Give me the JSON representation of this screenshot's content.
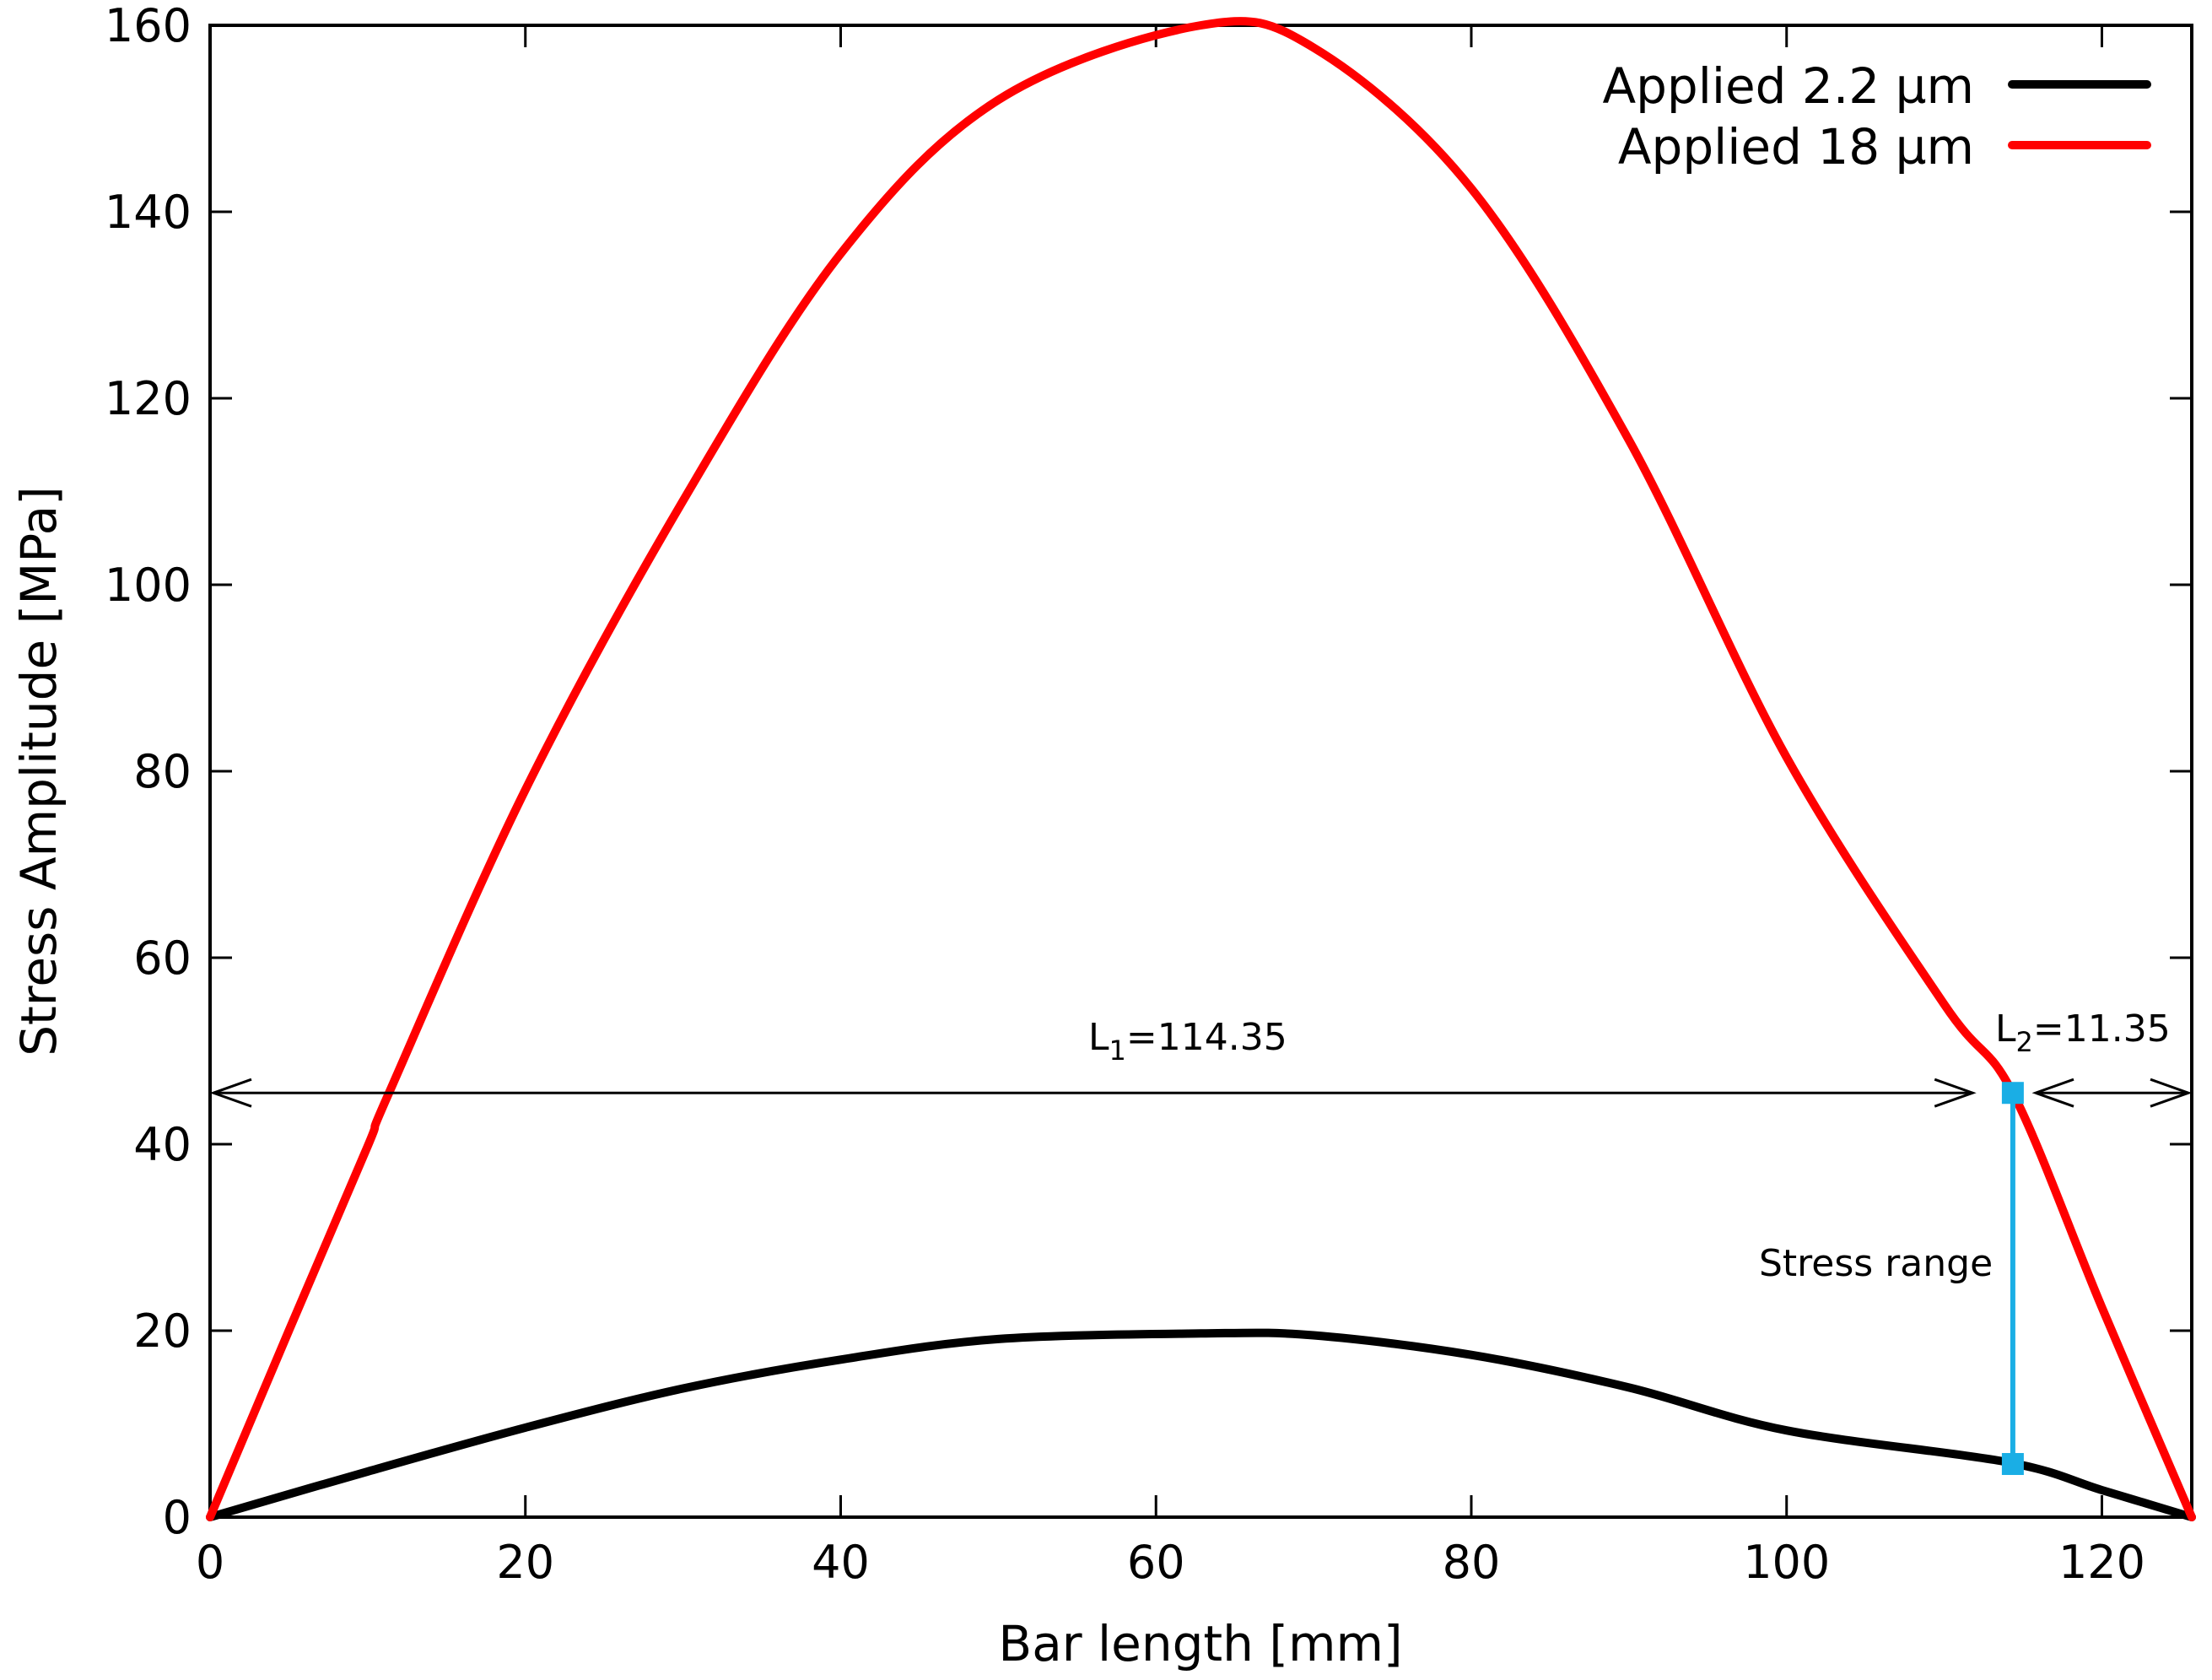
{
  "chart_data": {
    "type": "line",
    "title": "",
    "xlabel": "Bar length [mm]",
    "ylabel": "Stress Amplitude [MPa]",
    "xlim": [
      0,
      125.7
    ],
    "ylim": [
      0,
      160
    ],
    "xticks": [
      0,
      20,
      40,
      60,
      80,
      100,
      120
    ],
    "yticks": [
      0,
      20,
      40,
      60,
      80,
      100,
      120,
      140,
      160
    ],
    "grid": false,
    "legend_position": "top-right",
    "series": [
      {
        "name": "Applied 2.2 µm",
        "color": "#000000",
        "x": [
          0,
          10,
          20,
          30,
          40,
          50,
          62.85,
          70,
          80,
          90,
          100,
          114,
          120,
          125.7
        ],
        "y": [
          0,
          4.9,
          9.6,
          13.8,
          16.9,
          19.1,
          19.7,
          19.5,
          17.4,
          13.9,
          9.3,
          5.9,
          2.9,
          0
        ]
      },
      {
        "name": "Applied 18 µm",
        "color": "#ff0000",
        "x": [
          0,
          5,
          10,
          11.35,
          20,
          30,
          40,
          50,
          62.85,
          70,
          80,
          90,
          100,
          110,
          114.35,
          120,
          125.7
        ],
        "y": [
          0,
          20,
          39.8,
          45.5,
          78,
          109,
          135.5,
          152,
          160,
          157.6,
          142.5,
          115.5,
          81.5,
          55,
          45.5,
          22.5,
          0
        ]
      }
    ],
    "annotations": {
      "threshold_y": 45.5,
      "l1_label": "L",
      "l1_sub": "1",
      "l1_value": "=114.35",
      "l2_label": "L",
      "l2_sub": "2",
      "l2_value": "=11.35",
      "l1_x_range": [
        0,
        111.8
      ],
      "l2_x_range": [
        115.8,
        125.7
      ],
      "stress_range_label": "Stress range",
      "stress_range_x": 114.35,
      "stress_range_y": [
        5.7,
        45.5
      ],
      "stress_range_color": "#1aaee5"
    }
  }
}
